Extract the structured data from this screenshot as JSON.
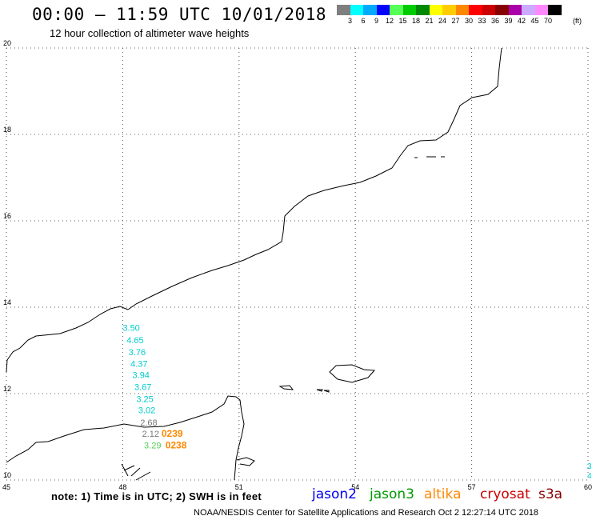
{
  "header": {
    "title": "00:00 – 11:59 UTC 10/01/2018",
    "subtitle": "12 hour collection of altimeter wave heights"
  },
  "legend": {
    "unit": "(ft)",
    "items": [
      {
        "label": "3",
        "color": "#7f7f7f"
      },
      {
        "label": "6",
        "color": "#00ffff"
      },
      {
        "label": "9",
        "color": "#00aaff"
      },
      {
        "label": "12",
        "color": "#0000ff"
      },
      {
        "label": "15",
        "color": "#55ff55"
      },
      {
        "label": "18",
        "color": "#00cc00"
      },
      {
        "label": "21",
        "color": "#008800"
      },
      {
        "label": "24",
        "color": "#ffff00"
      },
      {
        "label": "27",
        "color": "#ffcc00"
      },
      {
        "label": "30",
        "color": "#ff8800"
      },
      {
        "label": "33",
        "color": "#ff0000"
      },
      {
        "label": "36",
        "color": "#cc0000"
      },
      {
        "label": "39",
        "color": "#880000"
      },
      {
        "label": "42",
        "color": "#aa00aa"
      },
      {
        "label": "45",
        "color": "#ccaaff"
      },
      {
        "label": "70",
        "color": "#ff88ff"
      },
      {
        "label": "",
        "color": "#000000"
      }
    ]
  },
  "map": {
    "lon_range": [
      45,
      60
    ],
    "lat_range": [
      10,
      20
    ],
    "lon_ticks": [
      "45",
      "48",
      "51",
      "54",
      "57",
      "60"
    ],
    "lat_ticks": [
      "20",
      "18",
      "16",
      "14",
      "12",
      "10"
    ],
    "coastline_color": "#000000",
    "grid_color": "#555555"
  },
  "observations": [
    {
      "value": "3.50",
      "color": "#00cccc",
      "lon": 48.0,
      "lat": 13.45
    },
    {
      "value": "4.65",
      "color": "#00cccc",
      "lon": 48.1,
      "lat": 13.17
    },
    {
      "value": "3.76",
      "color": "#00cccc",
      "lon": 48.15,
      "lat": 12.89
    },
    {
      "value": "4.37",
      "color": "#00cccc",
      "lon": 48.2,
      "lat": 12.62
    },
    {
      "value": "3.94",
      "color": "#00cccc",
      "lon": 48.25,
      "lat": 12.36
    },
    {
      "value": "3.67",
      "color": "#00cccc",
      "lon": 48.3,
      "lat": 12.08
    },
    {
      "value": "3.25",
      "color": "#00cccc",
      "lon": 48.35,
      "lat": 11.81
    },
    {
      "value": "3.02",
      "color": "#00cccc",
      "lon": 48.4,
      "lat": 11.55
    },
    {
      "value": "2.68",
      "color": "#777777",
      "lon": 48.45,
      "lat": 11.26
    },
    {
      "value": "2.12",
      "color": "#777777",
      "lon": 48.5,
      "lat": 11.0
    },
    {
      "value": "3.29",
      "color": "#55cc55",
      "lon": 48.55,
      "lat": 10.73
    }
  ],
  "pass_times": [
    {
      "value": "0239",
      "color": "#ff8800",
      "lon": 49.0,
      "lat": 11.0
    },
    {
      "value": "0238",
      "color": "#ff8800",
      "lon": 49.1,
      "lat": 10.73
    }
  ],
  "edge_labels": [
    {
      "value": "3",
      "color": "#00cccc"
    },
    {
      "value": "4",
      "color": "#00cccc"
    }
  ],
  "footer": {
    "note": "note: 1) Time is in UTC; 2) SWH is in feet",
    "credit": "NOAA/NESDIS Center for Satellite Applications and Research    Oct  2 12:27:14 UTC 2018"
  },
  "satellites": [
    {
      "name": "jason2",
      "color": "#0000ee"
    },
    {
      "name": "jason3",
      "color": "#009900"
    },
    {
      "name": "altika",
      "color": "#ff8800"
    },
    {
      "name": "cryosat",
      "color": "#cc0000"
    },
    {
      "name": "s3a",
      "color": "#880000"
    }
  ]
}
